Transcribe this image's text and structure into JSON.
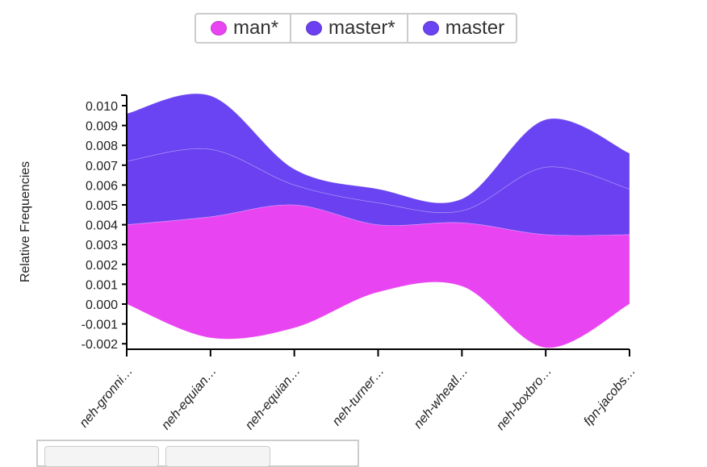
{
  "chart_data": {
    "type": "area",
    "subtype": "streamgraph",
    "ylabel": "Relative Frequencies",
    "ylim": [
      -0.0022,
      0.0105
    ],
    "yticks": [
      "0.010",
      "0.009",
      "0.008",
      "0.007",
      "0.006",
      "0.005",
      "0.004",
      "0.003",
      "0.002",
      "0.001",
      "0.000",
      "-0.001",
      "-0.002"
    ],
    "ytick_values": [
      0.01,
      0.009,
      0.008,
      0.007,
      0.006,
      0.005,
      0.004,
      0.003,
      0.002,
      0.001,
      0.0,
      -0.001,
      -0.002
    ],
    "categories": [
      "neh-gronni…",
      "neh-equian…",
      "neh-equian…",
      "neh-turner…",
      "neh-wheatl…",
      "neh-boxbro…",
      "fpn-jacobs…"
    ],
    "baseline": [
      0.0,
      -0.0017,
      -0.0012,
      0.0006,
      0.0009,
      -0.0022,
      0.0
    ],
    "series": [
      {
        "name": "man*",
        "color": "#e944f2",
        "values": [
          0.004,
          0.0061,
          0.0062,
          0.0034,
          0.0032,
          0.0057,
          0.0035
        ]
      },
      {
        "name": "master*",
        "color": "#6b40f0",
        "values": [
          0.0032,
          0.0034,
          0.001,
          0.0011,
          0.0006,
          0.0034,
          0.0023
        ]
      },
      {
        "name": "master",
        "color": "#6a44f2",
        "values": [
          0.0024,
          0.0027,
          0.0008,
          0.0007,
          0.0006,
          0.0024,
          0.0018
        ]
      }
    ],
    "legend_position": "top-center"
  }
}
